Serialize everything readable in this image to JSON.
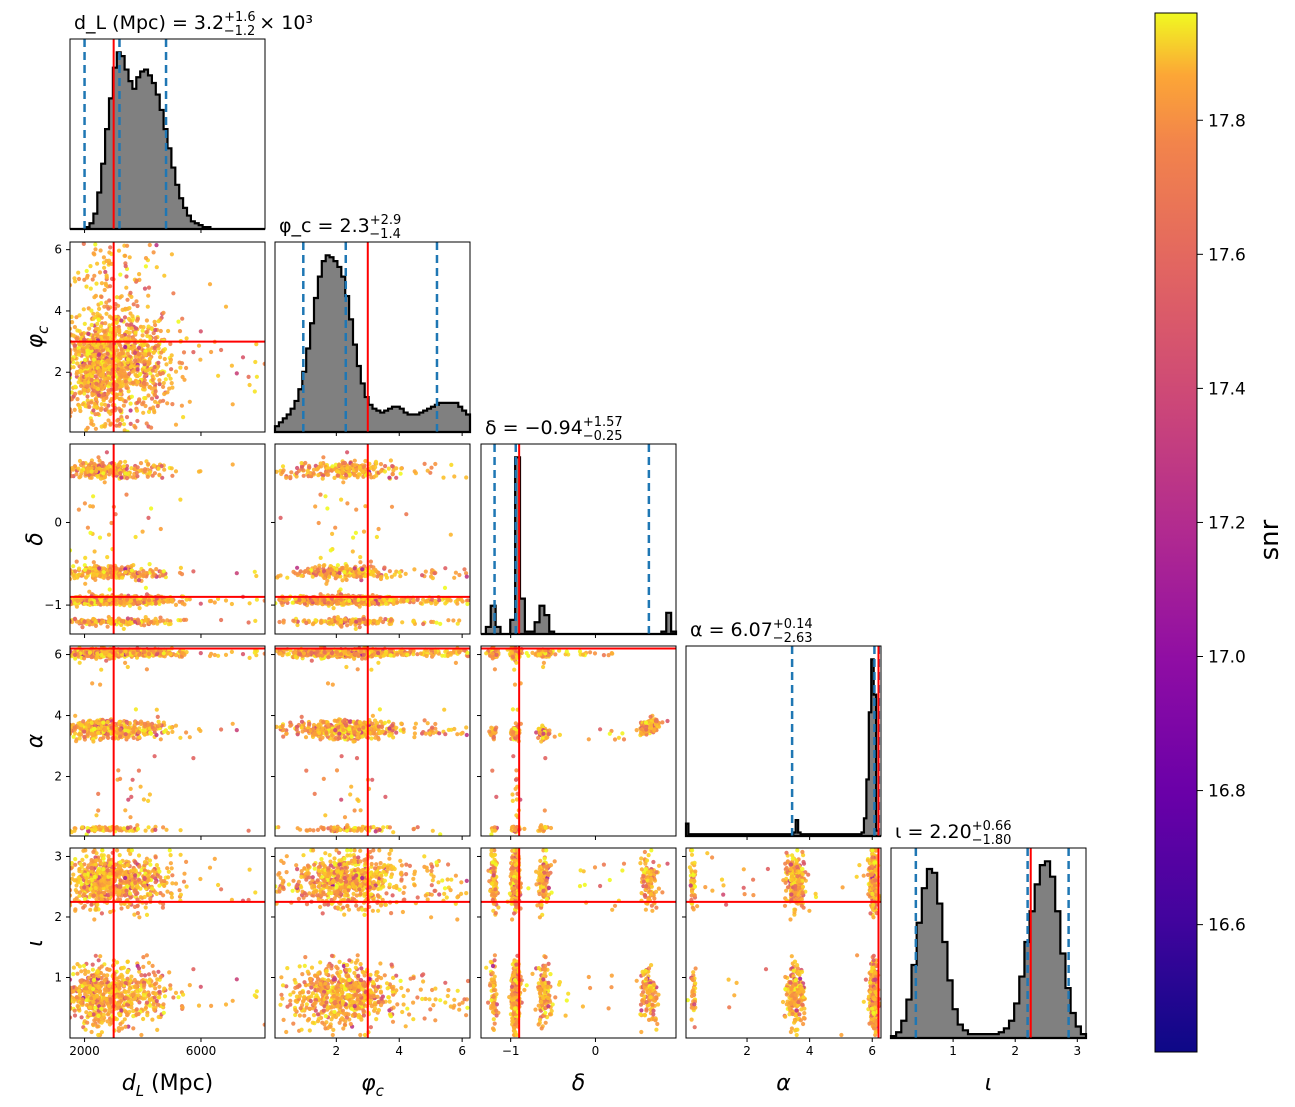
{
  "chart_data": {
    "type": "corner",
    "parameters": [
      {
        "key": "dL",
        "label": "d_L (Mpc)",
        "range": [
          1500,
          8200
        ],
        "ticks": [
          2000,
          6000
        ],
        "truth": 3000,
        "title": {
          "lhs": "d_L (Mpc) = 3.2",
          "sup": "+1.6",
          "sub": "−1.2",
          "tail": "× 10³"
        },
        "quantiles": [
          2000,
          3200,
          4800
        ],
        "hist": [
          0,
          0,
          0,
          0,
          1,
          3,
          8,
          19,
          34,
          52,
          68,
          84,
          92,
          90,
          83,
          77,
          73,
          79,
          82,
          83,
          80,
          76,
          70,
          62,
          52,
          42,
          32,
          23,
          16,
          11,
          7,
          4,
          3,
          2,
          1,
          1,
          0,
          0,
          0,
          0,
          0,
          0,
          0,
          0,
          0,
          0,
          0,
          0,
          0,
          0
        ]
      },
      {
        "key": "phic",
        "label": "φ_c",
        "range": [
          0.05,
          6.25
        ],
        "ticks": [
          2,
          4,
          6
        ],
        "truth": 3.0,
        "title": {
          "lhs": "φ_c = 2.3",
          "sup": "+2.9",
          "sub": "−1.4",
          "tail": ""
        },
        "quantiles": [
          0.95,
          2.3,
          5.2
        ],
        "hist": [
          3,
          5,
          7,
          9,
          12,
          16,
          22,
          31,
          43,
          56,
          69,
          80,
          88,
          91,
          90,
          88,
          85,
          80,
          70,
          58,
          45,
          34,
          25,
          18,
          14,
          12,
          11,
          10,
          11,
          12,
          13,
          13,
          12,
          10,
          9,
          9,
          9,
          10,
          11,
          12,
          13,
          14,
          15,
          15,
          15,
          15,
          15,
          13,
          11,
          9
        ]
      },
      {
        "key": "delta",
        "label": "δ",
        "range": [
          -1.35,
          0.95
        ],
        "ticks": [
          -1,
          0
        ],
        "truth": -0.9,
        "title": {
          "lhs": "δ = −0.94",
          "sup": "+1.57",
          "sub": "−0.25",
          "tail": ""
        },
        "quantiles": [
          -1.19,
          -0.94,
          0.63
        ],
        "hist": [
          0,
          3,
          12,
          3,
          0,
          0,
          6,
          75,
          15,
          1,
          1,
          5,
          12,
          8,
          1,
          0,
          0,
          0,
          0,
          0,
          0,
          0,
          0,
          0,
          0,
          0,
          0,
          0,
          0,
          0,
          0,
          0,
          0,
          0,
          0,
          0,
          0,
          1,
          9,
          1
        ]
      },
      {
        "key": "alpha",
        "label": "α",
        "range": [
          0.05,
          6.28
        ],
        "ticks": [
          2,
          4,
          6
        ],
        "truth": 6.2,
        "title": {
          "lhs": "α = 6.07",
          "sup": "+0.14",
          "sub": "−2.63",
          "tail": ""
        },
        "quantiles": [
          3.44,
          6.07,
          6.21
        ],
        "hist": [
          7,
          1,
          1,
          1,
          1,
          1,
          1,
          1,
          1,
          1,
          1,
          1,
          1,
          1,
          1,
          1,
          1,
          1,
          1,
          1,
          1,
          1,
          1,
          1,
          1,
          1,
          1,
          1,
          1,
          1,
          1,
          1,
          1,
          1,
          1,
          1,
          1,
          1,
          1,
          1,
          1,
          1,
          1,
          1,
          2,
          9,
          2,
          1,
          1,
          1,
          1,
          1,
          1,
          1,
          1,
          1,
          1,
          1,
          1,
          1,
          1,
          1,
          1,
          1,
          1,
          1,
          1,
          1,
          1,
          1,
          1,
          1,
          2,
          10,
          32,
          70,
          100,
          80,
          3,
          0
        ]
      },
      {
        "key": "iota",
        "label": "ι",
        "range": [
          0.0,
          3.14
        ],
        "ticks": [
          1,
          2,
          3
        ],
        "truth": 2.25,
        "title": {
          "lhs": "ι = 2.20",
          "sup": "+0.66",
          "sub": "−1.80",
          "tail": ""
        },
        "quantiles": [
          0.4,
          2.2,
          2.86
        ],
        "hist": [
          1,
          3,
          9,
          20,
          38,
          60,
          78,
          88,
          86,
          70,
          50,
          30,
          15,
          7,
          4,
          2,
          2,
          2,
          2,
          2,
          2,
          3,
          5,
          9,
          18,
          32,
          50,
          66,
          80,
          90,
          92,
          84,
          66,
          44,
          26,
          13,
          6,
          2
        ]
      }
    ],
    "colorbar": {
      "label": "snr",
      "range": [
        16.41,
        17.96
      ],
      "ticks": [
        "16.6",
        "16.8",
        "17.0",
        "17.2",
        "17.4",
        "17.6",
        "17.8"
      ],
      "tick_values": [
        16.6,
        16.8,
        17.0,
        17.2,
        17.4,
        17.6,
        17.8
      ],
      "colormap": "plasma"
    },
    "colors": {
      "hist_fill": "#808080",
      "hist_edge": "#000000",
      "quantile_line": "#1f77b4",
      "truth_line": "#ff0000"
    }
  }
}
